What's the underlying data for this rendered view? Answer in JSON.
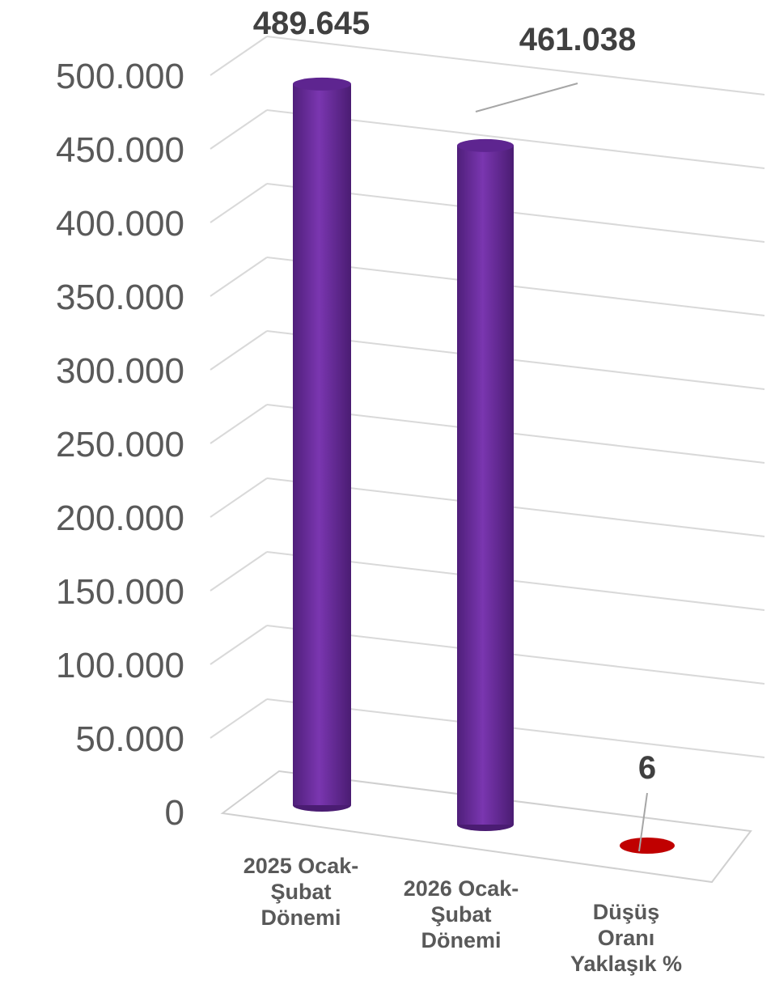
{
  "chart_data": {
    "type": "bar",
    "style": "3d-cylinder",
    "categories": [
      [
        "2025 Ocak-",
        "Şubat",
        "Dönemi"
      ],
      [
        "2026 Ocak-",
        "Şubat",
        "Dönemi"
      ],
      [
        "Düşüş",
        "Oranı",
        "Yaklaşık %"
      ]
    ],
    "values": [
      489645,
      461038,
      6
    ],
    "data_labels": [
      "489.645",
      "461.038",
      "6"
    ],
    "bar_colors": [
      "#7030A0",
      "#7030A0",
      "#C00000"
    ],
    "yticks": [
      "0",
      "50.000",
      "100.000",
      "150.000",
      "200.000",
      "250.000",
      "300.000",
      "350.000",
      "400.000",
      "450.000",
      "500.000"
    ],
    "ylim": [
      0,
      500000
    ],
    "grid": true,
    "legend": false
  }
}
